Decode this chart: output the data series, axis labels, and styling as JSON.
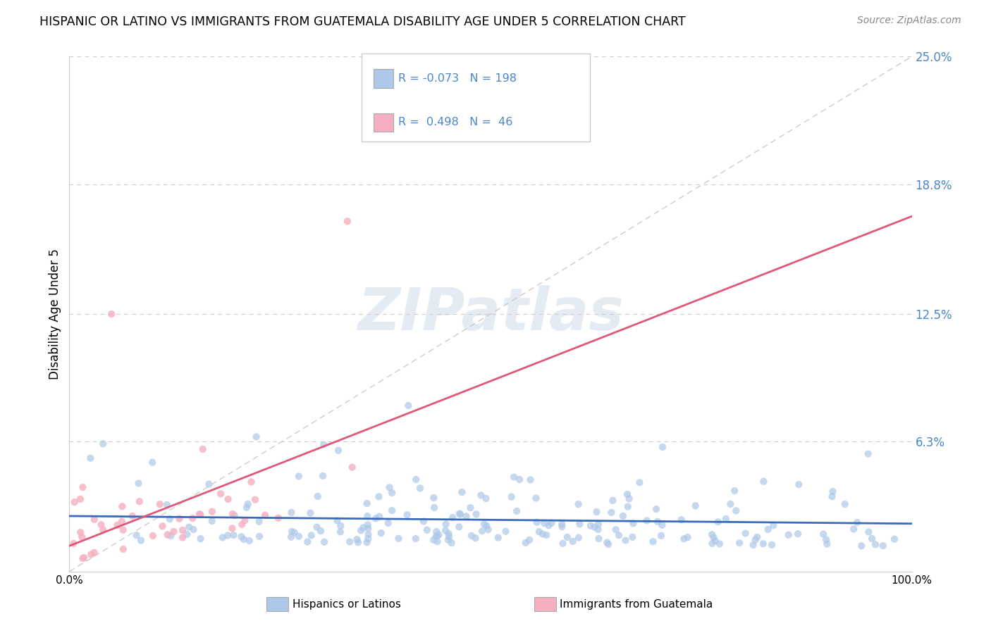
{
  "title": "HISPANIC OR LATINO VS IMMIGRANTS FROM GUATEMALA DISABILITY AGE UNDER 5 CORRELATION CHART",
  "source": "Source: ZipAtlas.com",
  "ylabel": "Disability Age Under 5",
  "xlim": [
    0,
    100
  ],
  "ylim": [
    0,
    25
  ],
  "blue_R": -0.073,
  "blue_N": 198,
  "pink_R": 0.498,
  "pink_N": 46,
  "blue_color": "#adc8e8",
  "pink_color": "#f5afc0",
  "blue_line_color": "#3a6bbb",
  "pink_line_color": "#e05878",
  "legend_blue_label": "Hispanics or Latinos",
  "legend_pink_label": "Immigrants from Guatemala",
  "watermark_text": "ZIPatlas",
  "background_color": "#ffffff",
  "title_fontsize": 12.5,
  "seed": 42,
  "blue_x_mean": 52,
  "blue_y_mean": 1.8,
  "pink_x_mean": 12,
  "pink_y_mean": 3.5
}
